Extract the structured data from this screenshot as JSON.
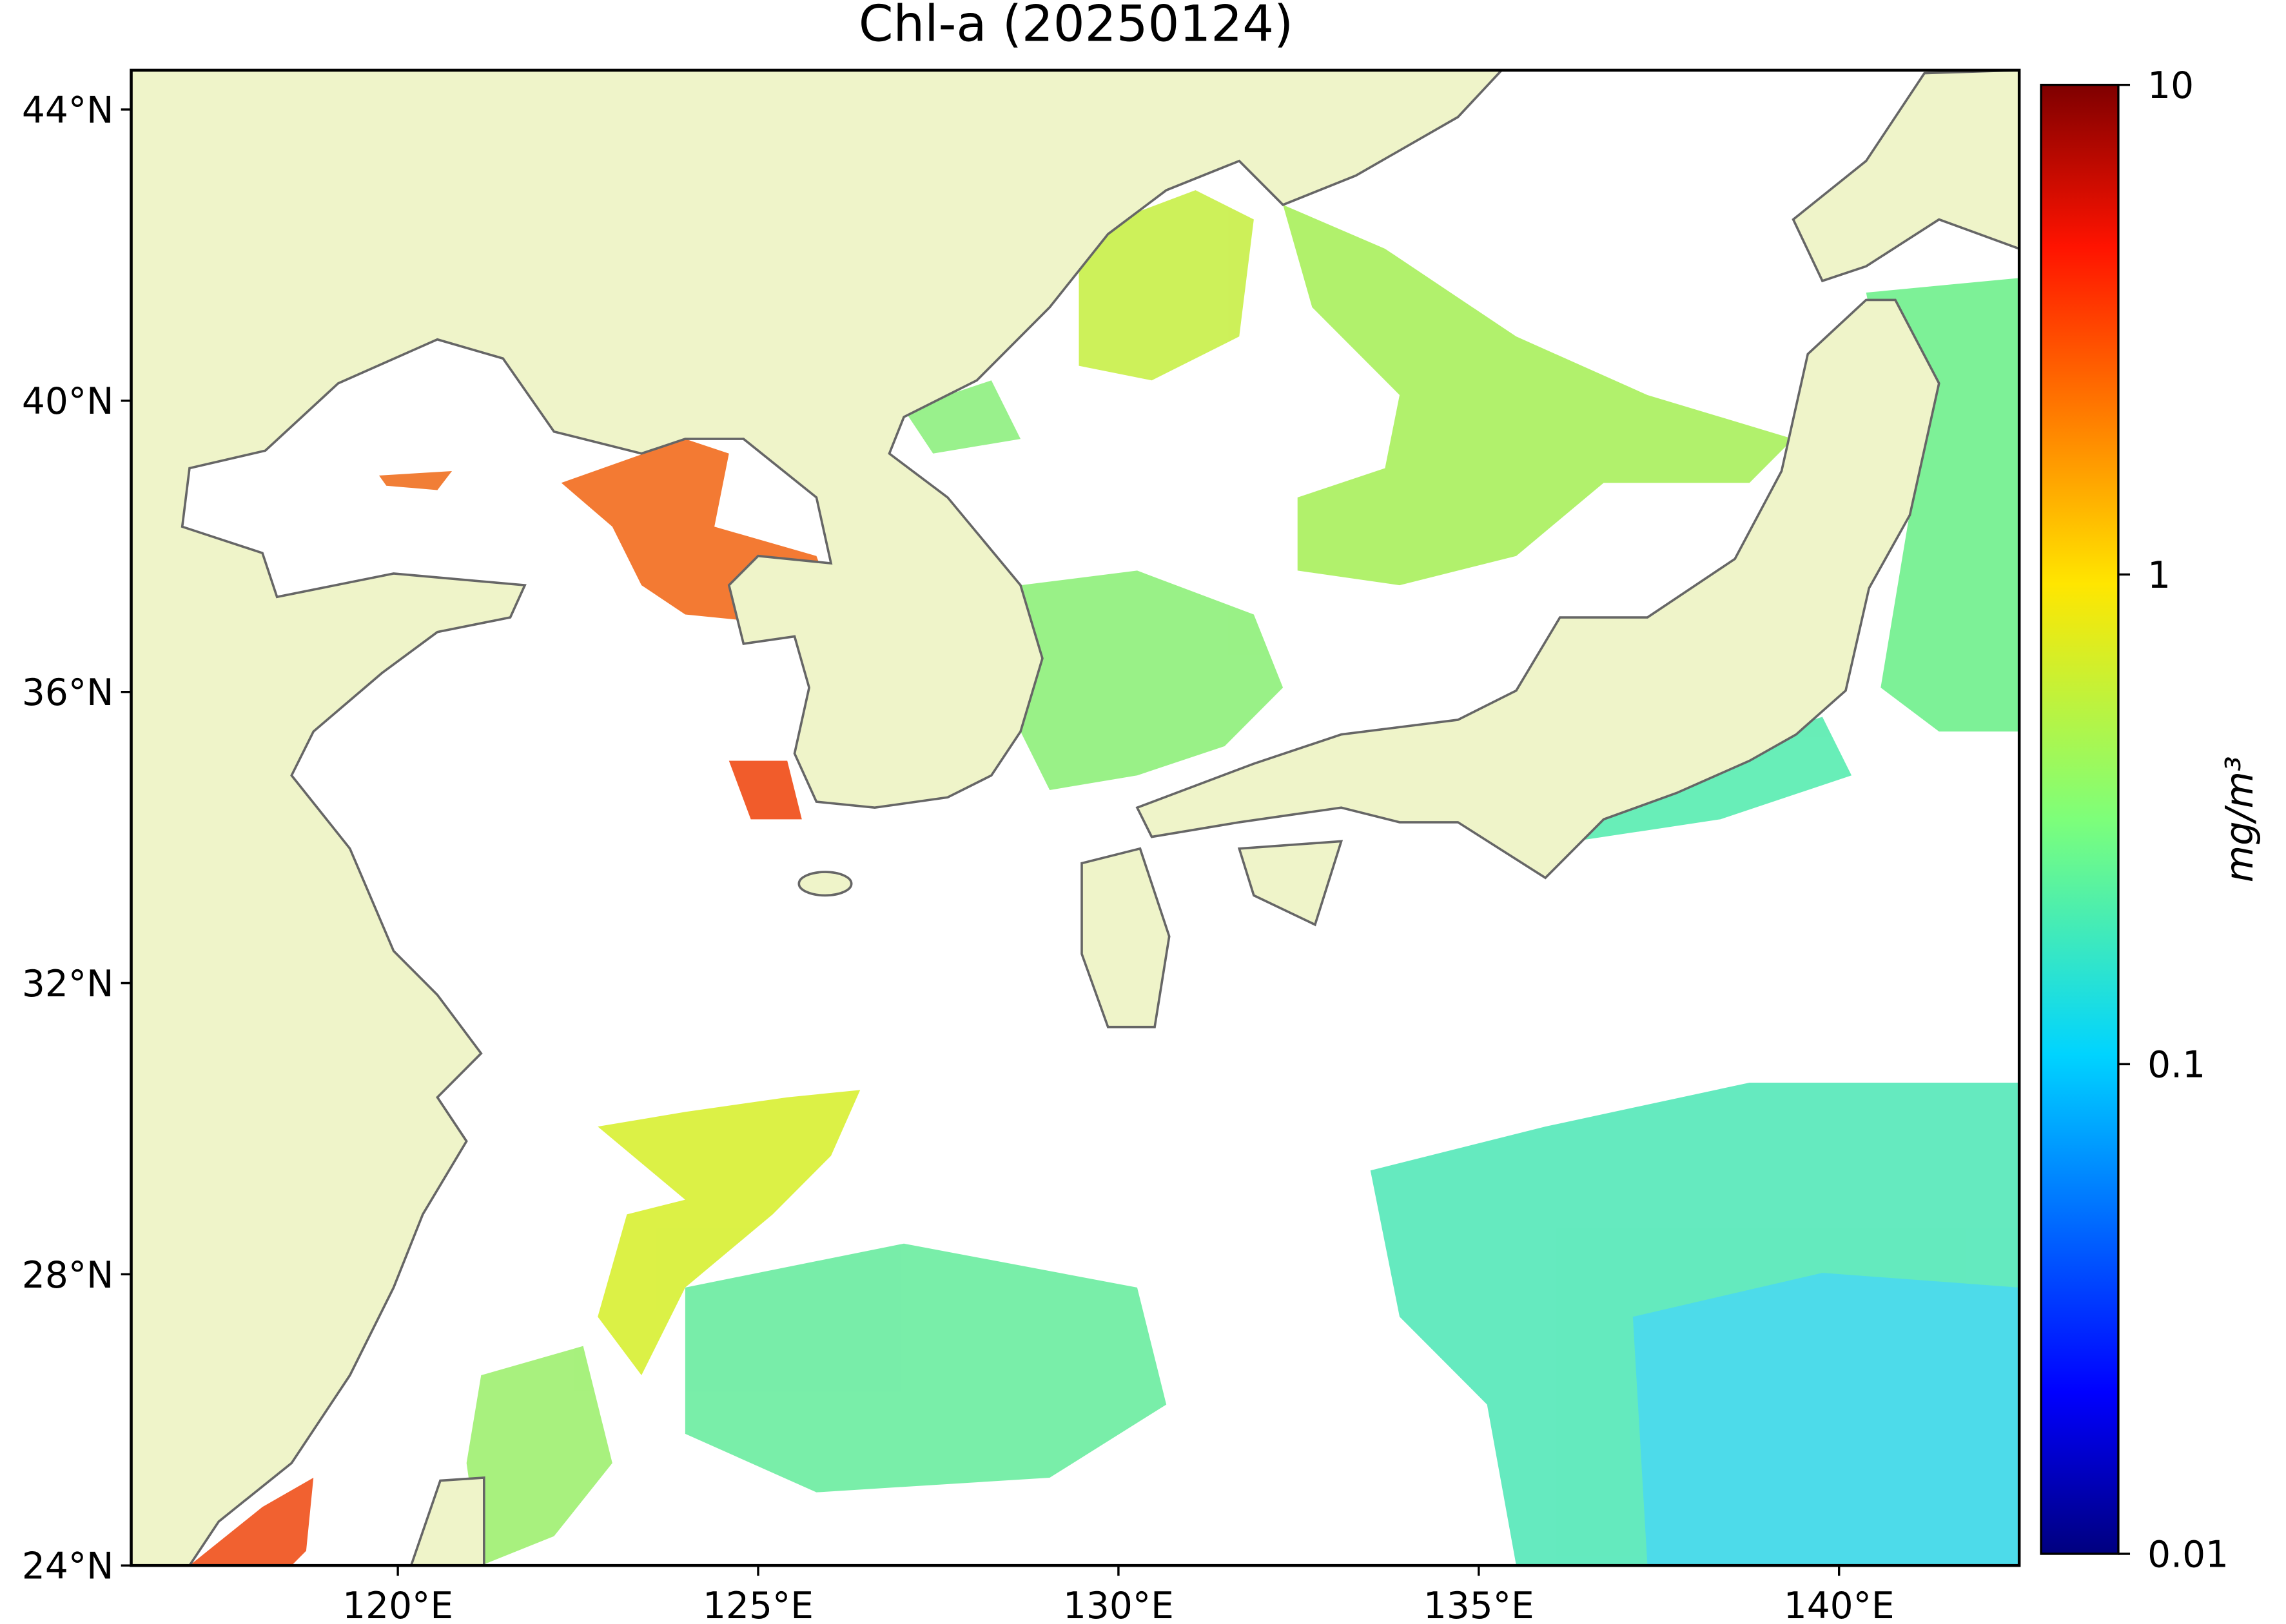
{
  "chart_data": {
    "type": "map",
    "title": "Chl-a (20250124)",
    "xlim": [
      116.3,
      142.5
    ],
    "ylim": [
      24,
      44.54
    ],
    "xticks": [
      {
        "value": 120,
        "label": "120°E"
      },
      {
        "value": 125,
        "label": "125°E"
      },
      {
        "value": 130,
        "label": "130°E"
      },
      {
        "value": 135,
        "label": "135°E"
      },
      {
        "value": 140,
        "label": "140°E"
      }
    ],
    "yticks": [
      {
        "value": 24,
        "label": "24°N"
      },
      {
        "value": 28,
        "label": "28°N"
      },
      {
        "value": 32,
        "label": "32°N"
      },
      {
        "value": 36,
        "label": "36°N"
      },
      {
        "value": 40,
        "label": "40°N"
      },
      {
        "value": 44,
        "label": "44°N"
      }
    ],
    "colorbar": {
      "label": "mg/m³",
      "scale": "log",
      "lim": [
        0.01,
        10
      ],
      "ticks": [
        0.01,
        0.1,
        1,
        10
      ]
    }
  }
}
